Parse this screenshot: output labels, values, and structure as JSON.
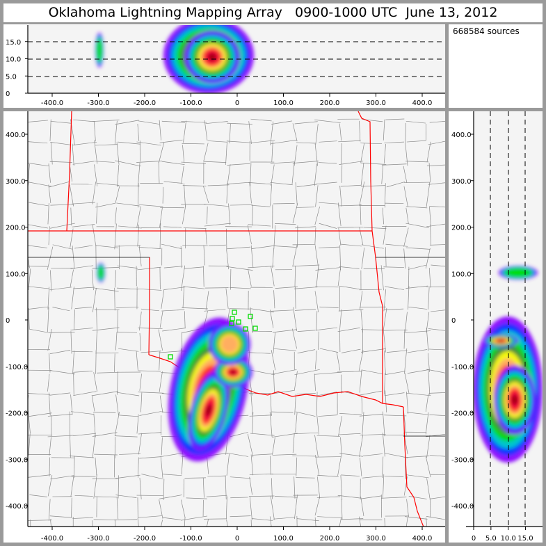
{
  "title": "Oklahoma Lightning Mapping Array   0900-1000 UTC  June 13, 2012",
  "sources_label": "668584 sources",
  "top_panel": {
    "x_ticks": [
      "-400.0",
      "-300.0",
      "-200.0",
      "-100.0",
      "0",
      "100.0",
      "200.0",
      "300.0",
      "400.0"
    ],
    "y_ticks": [
      "0",
      "5.0",
      "10.0",
      "15.0"
    ]
  },
  "main_panel": {
    "x_ticks": [
      "-400.0",
      "-300.0",
      "-200.0",
      "-100.0",
      "0",
      "100.0",
      "200.0",
      "300.0",
      "400.0"
    ],
    "y_ticks": [
      "400.0",
      "300.0",
      "200.0",
      "100.0",
      "0",
      "-100.0",
      "-200.0",
      "-300.0",
      "-400.0"
    ]
  },
  "right_panel": {
    "x_ticks": [
      "0",
      "5.0",
      "10.0",
      "15.0"
    ],
    "y_ticks": [
      "400.0",
      "300.0",
      "200.0",
      "100.0",
      "0",
      "-100.0",
      "-200.0",
      "-300.0",
      "-400.0"
    ]
  },
  "colors": {
    "state_border": "#ff0000",
    "county_border": "#888888",
    "station": "#00dd00",
    "background": "#f4f4f4",
    "frame": "#9a9a9a"
  }
}
